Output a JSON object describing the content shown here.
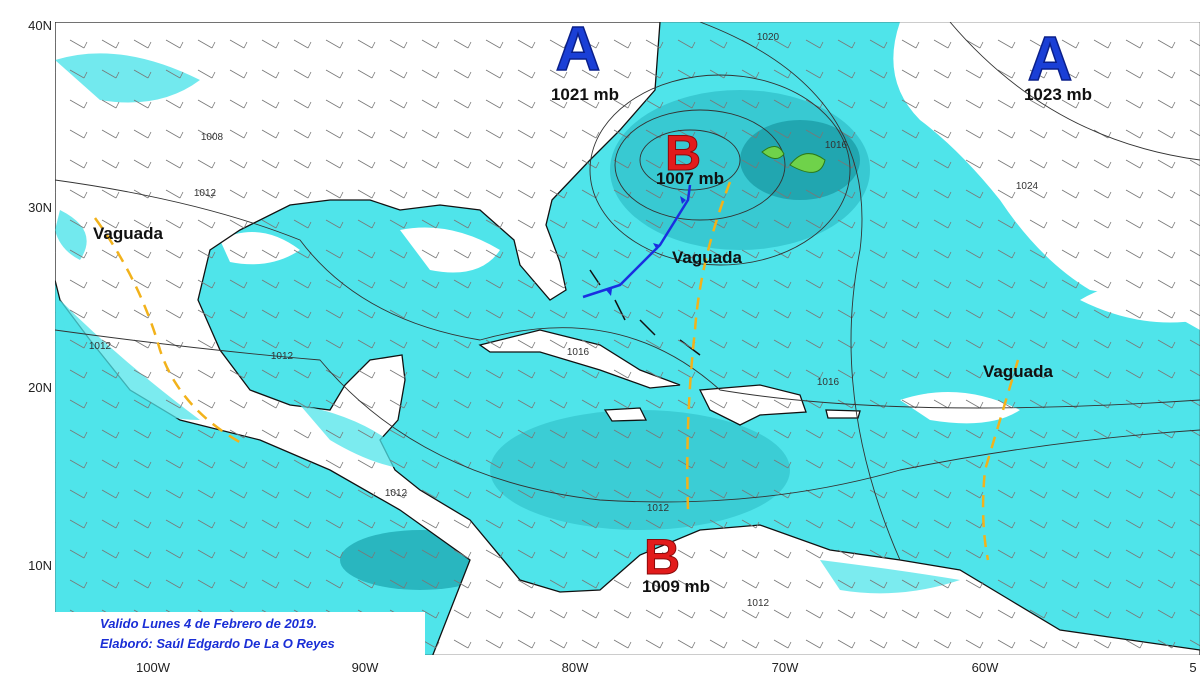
{
  "lat_labels": [
    "40N",
    "30N",
    "20N",
    "10N"
  ],
  "lon_labels": [
    "100W",
    "90W",
    "80W",
    "70W",
    "60W",
    "5"
  ],
  "pressure_centers": [
    {
      "letter": "A",
      "label": "1021 mb"
    },
    {
      "letter": "A",
      "label": "1023 mb"
    },
    {
      "letter": "B",
      "label": "1007 mb"
    },
    {
      "letter": "B",
      "label": "1009 mb"
    }
  ],
  "troughs": [
    "Vaguada",
    "Vaguada",
    "Vaguada"
  ],
  "isobar_labels": [
    "1020",
    "1008",
    "1012",
    "1012",
    "1012",
    "1016",
    "1016",
    "1024",
    "1016",
    "1012",
    "1012",
    "1012"
  ],
  "credits": [
    "Valido  Lunes 4 de Febrero de 2019.",
    "Elaboró: Saúl Edgardo De La O Reyes"
  ]
}
